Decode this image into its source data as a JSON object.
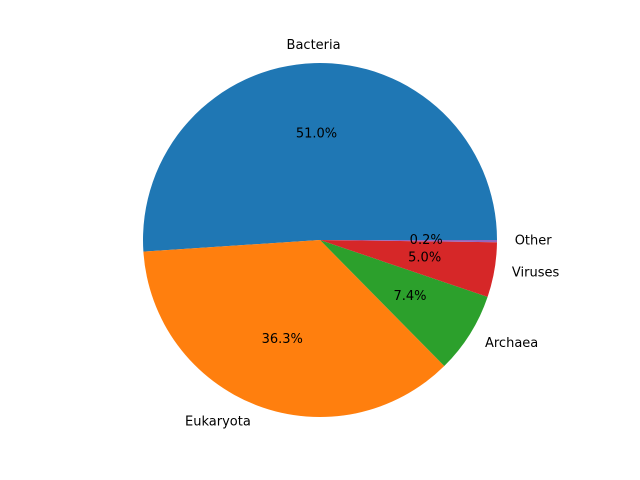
{
  "chart_data": {
    "type": "pie",
    "title": "",
    "categories": [
      "Bacteria",
      "Eukaryota",
      "Archaea",
      "Viruses",
      "Other"
    ],
    "values": [
      51.0,
      36.3,
      7.4,
      5.0,
      0.2
    ],
    "percent_labels": [
      "51.0%",
      "36.3%",
      "7.4%",
      "5.0%",
      "0.2%"
    ],
    "colors": [
      "#1f77b4",
      "#ff7f0e",
      "#2ca02c",
      "#d62728",
      "#9467bd"
    ],
    "start_angle_deg": 0,
    "direction": "counterclockwise",
    "legend": "none"
  }
}
